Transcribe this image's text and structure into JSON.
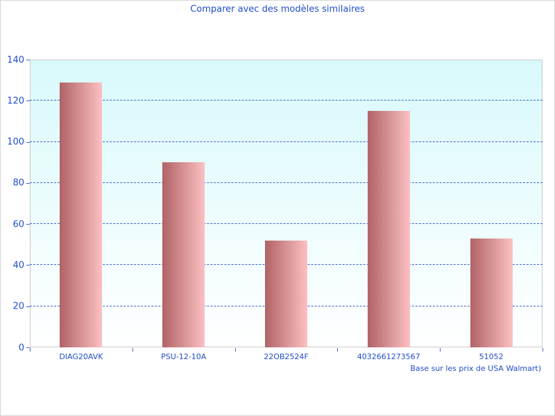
{
  "window": {
    "background": "#ffffff",
    "border_color": "#d6d6d6"
  },
  "chart_data": {
    "type": "bar",
    "title": "Comparer avec des modèles similaires",
    "categories": [
      "DIAG20AVK",
      "PSU-12-10A",
      "22OB2524F",
      "4032661273567",
      "51052"
    ],
    "values": [
      129,
      90,
      52,
      115,
      53
    ],
    "xlabel": "",
    "ylabel": "",
    "ylim": [
      0,
      140
    ],
    "yticks": [
      0,
      20,
      40,
      60,
      80,
      100,
      120,
      140
    ],
    "grid": "horizontal-dashed",
    "legend_position": "none",
    "note": "Base sur les prix de USA Walmart)",
    "colors": {
      "text_blue": "#1f4fc8",
      "grid_blue": "#3a64cc",
      "bar_gradient_start": "#b06366",
      "bar_gradient_end": "#fcc0c2",
      "plot_bg_top": "#d8f9fb",
      "plot_bg_bottom": "#ffffff",
      "plot_border": "#c9c9c9",
      "window_border": "#d6d6d6"
    }
  }
}
